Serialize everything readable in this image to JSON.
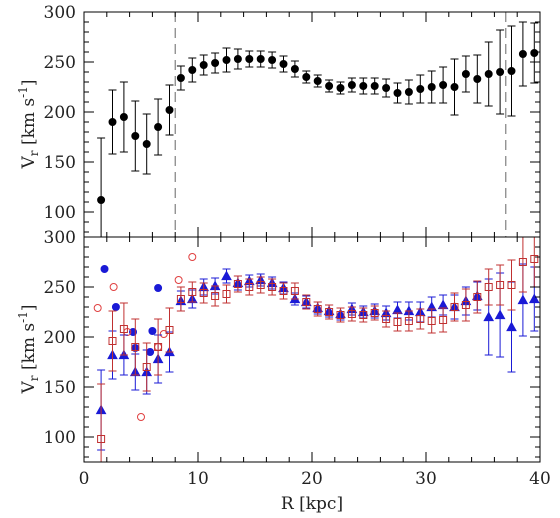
{
  "chart_data": [
    {
      "type": "scatter",
      "panel": "top",
      "xlim": [
        0,
        40
      ],
      "ylim": [
        75,
        300
      ],
      "ylabel_main": "V",
      "ylabel_sub": "r",
      "ylabel_unit": " [km s",
      "ylabel_exp": "-1",
      "ylabel_close": "]",
      "yticks": [
        "100",
        "150",
        "200",
        "250",
        "300"
      ],
      "vertical_dashed_lines_x": [
        8,
        37
      ],
      "series": [
        {
          "marker": "filled-circle",
          "color": "#000000",
          "points": [
            [
              1.5,
              112,
              62
            ],
            [
              2.5,
              190,
              32
            ],
            [
              3.5,
              195,
              35
            ],
            [
              4.5,
              176,
              35
            ],
            [
              5.5,
              168,
              30
            ],
            [
              6.5,
              185,
              28
            ],
            [
              7.5,
              202,
              25
            ],
            [
              8.5,
              234,
              12
            ],
            [
              9.5,
              242,
              12
            ],
            [
              10.5,
              247,
              10
            ],
            [
              11.5,
              249,
              10
            ],
            [
              12.5,
              252,
              12
            ],
            [
              13.5,
              253,
              10
            ],
            [
              14.5,
              253,
              8
            ],
            [
              15.5,
              253,
              8
            ],
            [
              16.5,
              252,
              8
            ],
            [
              17.5,
              248,
              8
            ],
            [
              18.5,
              243,
              8
            ],
            [
              19.5,
              235,
              6
            ],
            [
              20.5,
              231,
              6
            ],
            [
              21.5,
              226,
              6
            ],
            [
              22.5,
              224,
              6
            ],
            [
              23.5,
              227,
              7
            ],
            [
              24.5,
              226,
              8
            ],
            [
              25.5,
              226,
              8
            ],
            [
              26.5,
              224,
              9
            ],
            [
              27.5,
              219,
              10
            ],
            [
              28.5,
              220,
              12
            ],
            [
              29.5,
              223,
              14
            ],
            [
              30.5,
              225,
              16
            ],
            [
              31.5,
              227,
              18
            ],
            [
              32.5,
              225,
              28
            ],
            [
              33.5,
              238,
              18
            ],
            [
              34.5,
              233,
              24
            ],
            [
              35.5,
              238,
              32
            ],
            [
              36.5,
              240,
              42
            ],
            [
              37.5,
              241,
              45
            ],
            [
              38.5,
              258,
              32
            ],
            [
              39.5,
              259,
              30
            ]
          ]
        }
      ]
    },
    {
      "type": "scatter",
      "panel": "bottom",
      "xlim": [
        0,
        40
      ],
      "ylim": [
        75,
        300
      ],
      "xlabel": "R [kpc]",
      "ylabel_main": "V",
      "ylabel_sub": "r",
      "ylabel_unit": " [km s",
      "ylabel_exp": "-1",
      "ylabel_close": "]",
      "xticks": [
        "0",
        "10",
        "20",
        "30",
        "40"
      ],
      "yticks": [
        "100",
        "150",
        "200",
        "250",
        "300"
      ],
      "series": [
        {
          "marker": "filled-circle",
          "color": "#1a1ad6",
          "points": [
            [
              1.8,
              268
            ],
            [
              2.8,
              230
            ],
            [
              4.3,
              205
            ],
            [
              4.5,
              189
            ],
            [
              5.8,
              185
            ],
            [
              6.0,
              206
            ],
            [
              6.5,
              249
            ]
          ]
        },
        {
          "marker": "open-circle",
          "color": "#e04040",
          "points": [
            [
              1.2,
              229
            ],
            [
              2.6,
              250
            ],
            [
              3.8,
              205
            ],
            [
              5.0,
              120
            ],
            [
              6.5,
              190
            ],
            [
              7.0,
              203
            ],
            [
              8.3,
              257
            ],
            [
              9.5,
              280
            ]
          ]
        },
        {
          "marker": "filled-triangle",
          "color": "#1a1ad6",
          "points": [
            [
              1.5,
              127,
              40
            ],
            [
              2.5,
              182,
              24
            ],
            [
              3.5,
              182,
              20
            ],
            [
              4.5,
              165,
              18
            ],
            [
              5.5,
              165,
              22
            ],
            [
              6.5,
              178,
              24
            ],
            [
              7.5,
              185,
              20
            ],
            [
              8.5,
              236,
              10
            ],
            [
              9.5,
              238,
              9
            ],
            [
              10.5,
              250,
              8
            ],
            [
              11.5,
              251,
              8
            ],
            [
              12.5,
              261,
              7
            ],
            [
              13.5,
              254,
              7
            ],
            [
              14.5,
              256,
              6
            ],
            [
              15.5,
              257,
              6
            ],
            [
              16.5,
              254,
              6
            ],
            [
              17.5,
              249,
              6
            ],
            [
              18.5,
              238,
              6
            ],
            [
              19.5,
              235,
              6
            ],
            [
              20.5,
              229,
              6
            ],
            [
              21.5,
              226,
              6
            ],
            [
              22.5,
              223,
              6
            ],
            [
              23.5,
              228,
              6
            ],
            [
              24.5,
              225,
              6
            ],
            [
              25.5,
              226,
              7
            ],
            [
              26.5,
              224,
              7
            ],
            [
              27.5,
              227,
              8
            ],
            [
              28.5,
              226,
              9
            ],
            [
              29.5,
              225,
              10
            ],
            [
              30.5,
              230,
              10
            ],
            [
              31.5,
              232,
              10
            ],
            [
              32.5,
              230,
              12
            ],
            [
              33.5,
              236,
              14
            ],
            [
              34.5,
              241,
              14
            ],
            [
              35.5,
              220,
              38
            ],
            [
              36.5,
              222,
              42
            ],
            [
              37.5,
              210,
              45
            ],
            [
              38.5,
              237,
              36
            ],
            [
              39.5,
              238,
              32
            ]
          ]
        },
        {
          "marker": "open-square",
          "color": "#c03030",
          "points": [
            [
              1.5,
              98,
              55
            ],
            [
              2.5,
              196,
              30
            ],
            [
              3.5,
              208,
              26
            ],
            [
              4.5,
              190,
              28
            ],
            [
              5.5,
              170,
              24
            ],
            [
              6.5,
              190,
              28
            ],
            [
              7.5,
              207,
              22
            ],
            [
              8.5,
              238,
              12
            ],
            [
              9.5,
              245,
              10
            ],
            [
              10.5,
              244,
              10
            ],
            [
              11.5,
              241,
              10
            ],
            [
              12.5,
              243,
              9
            ],
            [
              13.5,
              253,
              8
            ],
            [
              14.5,
              250,
              8
            ],
            [
              15.5,
              252,
              8
            ],
            [
              16.5,
              250,
              8
            ],
            [
              17.5,
              246,
              8
            ],
            [
              18.5,
              246,
              8
            ],
            [
              19.5,
              235,
              7
            ],
            [
              20.5,
              228,
              7
            ],
            [
              21.5,
              225,
              7
            ],
            [
              22.5,
              222,
              7
            ],
            [
              23.5,
              223,
              7
            ],
            [
              24.5,
              222,
              7
            ],
            [
              25.5,
              224,
              7
            ],
            [
              26.5,
              218,
              8
            ],
            [
              27.5,
              215,
              9
            ],
            [
              28.5,
              216,
              10
            ],
            [
              29.5,
              218,
              10
            ],
            [
              30.5,
              216,
              12
            ],
            [
              31.5,
              217,
              12
            ],
            [
              32.5,
              230,
              14
            ],
            [
              33.5,
              232,
              16
            ],
            [
              34.5,
              240,
              16
            ],
            [
              35.5,
              250,
              18
            ],
            [
              36.5,
              252,
              20
            ],
            [
              37.5,
              252,
              25
            ],
            [
              38.5,
              275,
              30
            ],
            [
              39.5,
              278,
              28
            ]
          ]
        }
      ]
    }
  ]
}
